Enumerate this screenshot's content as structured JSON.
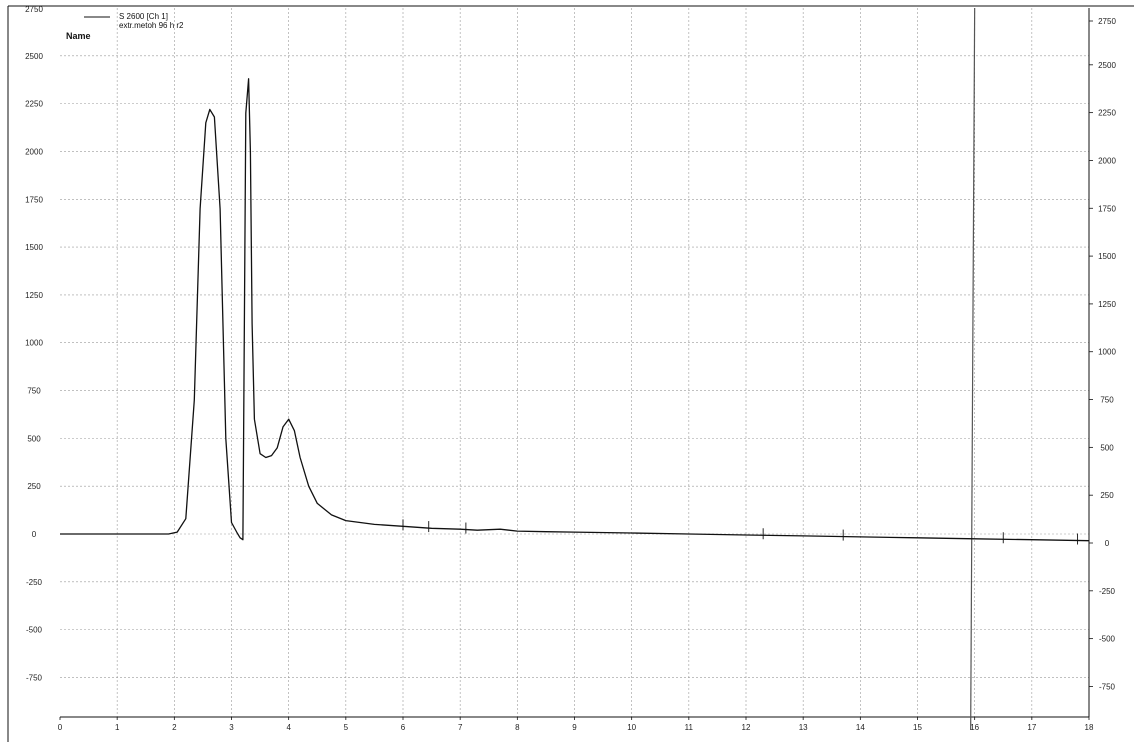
{
  "chart_data": {
    "type": "line",
    "legend": {
      "entries": [
        "S 2600 [Ch 1]",
        "extr.metoh 96 h r2"
      ],
      "title": "Name",
      "position": "top-left"
    },
    "xlabel": "",
    "ylabel": "",
    "xlim": [
      0,
      18
    ],
    "ylim": [
      -950,
      2750
    ],
    "x_ticks": [
      0,
      1,
      2,
      3,
      4,
      5,
      6,
      7,
      8,
      9,
      10,
      11,
      12,
      13,
      14,
      15,
      16,
      17,
      18
    ],
    "y_ticks_left": [
      2750,
      2500,
      2250,
      2000,
      1750,
      1500,
      1250,
      1000,
      750,
      500,
      250,
      0,
      -250,
      -500,
      -750
    ],
    "y_ticks_right": [
      2750,
      2500,
      2250,
      2000,
      1750,
      1500,
      1250,
      1000,
      750,
      500,
      250,
      0,
      -250,
      -500,
      -750
    ],
    "grid": true,
    "series": [
      {
        "name": "S 2600 [Ch 1]",
        "x": [
          0,
          1.9,
          2.05,
          2.2,
          2.35,
          2.45,
          2.55,
          2.62,
          2.7,
          2.8,
          2.9,
          3.0,
          3.1,
          3.15,
          3.2,
          3.25,
          3.3,
          3.33,
          3.36,
          3.4,
          3.5,
          3.6,
          3.7,
          3.8,
          3.9,
          4.0,
          4.1,
          4.2,
          4.35,
          4.5,
          4.75,
          5.0,
          5.5,
          6.0,
          6.5,
          7.0,
          7.3,
          7.7,
          8.0,
          8.5,
          9.0,
          10.0,
          11.0,
          12.0,
          13.0,
          14.0,
          15.0,
          16.0,
          17.0,
          18.0
        ],
        "values": [
          0,
          0,
          10,
          80,
          700,
          1700,
          2150,
          2220,
          2180,
          1700,
          500,
          60,
          5,
          -20,
          -30,
          2200,
          2380,
          2000,
          1100,
          600,
          420,
          400,
          410,
          450,
          560,
          600,
          540,
          400,
          250,
          160,
          100,
          70,
          50,
          40,
          30,
          25,
          20,
          25,
          15,
          12,
          10,
          5,
          0,
          -5,
          -10,
          -15,
          -20,
          -25,
          -30,
          -35
        ]
      }
    ],
    "annotations": [
      {
        "x": 6.0,
        "label": ""
      },
      {
        "x": 6.45,
        "label": ""
      },
      {
        "x": 7.1,
        "label": ""
      },
      {
        "x": 12.3,
        "label": ""
      },
      {
        "x": 13.7,
        "label": ""
      },
      {
        "x": 16.5,
        "label": ""
      },
      {
        "x": 17.8,
        "label": ""
      }
    ],
    "vertical_line_x": 16.0
  }
}
